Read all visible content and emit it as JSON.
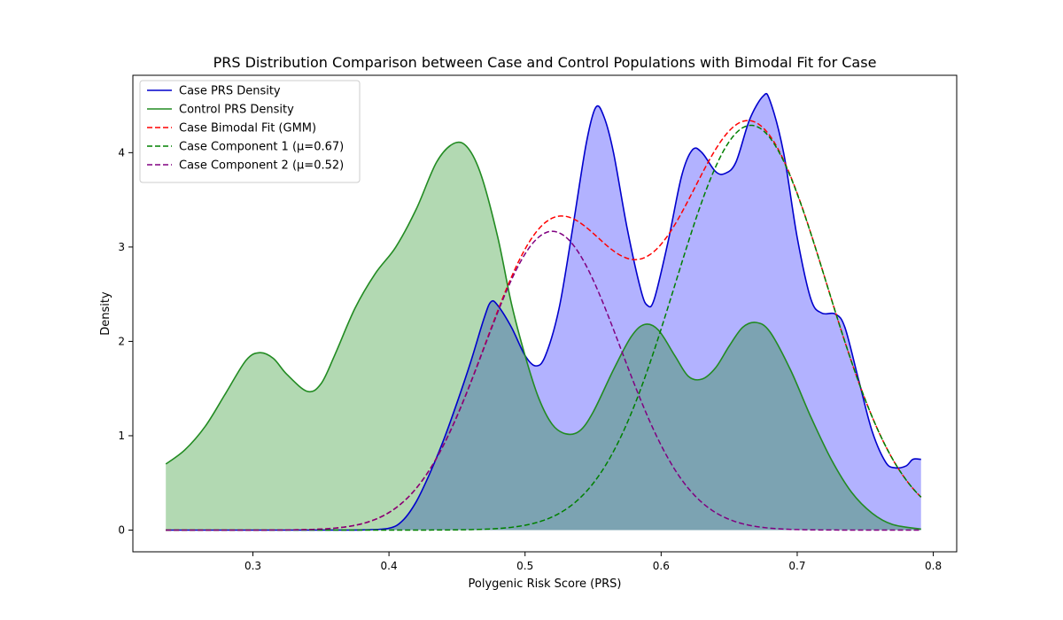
{
  "chart_data": {
    "type": "line",
    "title": "PRS Distribution Comparison between Case and Control Populations with Bimodal Fit for Case",
    "xlabel": "Polygenic Risk Score (PRS)",
    "ylabel": "Density",
    "xlim": [
      0.2118,
      0.8172
    ],
    "ylim": [
      -0.23,
      4.82
    ],
    "x_ticks": [
      0.3,
      0.4,
      0.5,
      0.6,
      0.7,
      0.8
    ],
    "x_tick_labels": [
      "0.3",
      "0.4",
      "0.5",
      "0.6",
      "0.7",
      "0.8"
    ],
    "y_ticks": [
      0,
      1,
      2,
      3,
      4
    ],
    "y_tick_labels": [
      "0",
      "1",
      "2",
      "3",
      "4"
    ],
    "grid": false,
    "legend_position": "top-left",
    "series": [
      {
        "name": "Case PRS Density",
        "color": "#0000cc",
        "fill": "#0000ff",
        "fill_opacity": 0.3,
        "dash": "solid",
        "points": [
          [
            0.236,
            0.0
          ],
          [
            0.35,
            0.0
          ],
          [
            0.38,
            0.002
          ],
          [
            0.4,
            0.02
          ],
          [
            0.41,
            0.1
          ],
          [
            0.42,
            0.3
          ],
          [
            0.43,
            0.6
          ],
          [
            0.44,
            0.95
          ],
          [
            0.45,
            1.35
          ],
          [
            0.46,
            1.78
          ],
          [
            0.47,
            2.25
          ],
          [
            0.475,
            2.42
          ],
          [
            0.48,
            2.38
          ],
          [
            0.49,
            2.15
          ],
          [
            0.5,
            1.85
          ],
          [
            0.508,
            1.74
          ],
          [
            0.515,
            1.85
          ],
          [
            0.525,
            2.35
          ],
          [
            0.535,
            3.2
          ],
          [
            0.545,
            4.1
          ],
          [
            0.552,
            4.48
          ],
          [
            0.558,
            4.38
          ],
          [
            0.565,
            4.0
          ],
          [
            0.575,
            3.2
          ],
          [
            0.585,
            2.55
          ],
          [
            0.59,
            2.38
          ],
          [
            0.595,
            2.45
          ],
          [
            0.605,
            3.05
          ],
          [
            0.615,
            3.75
          ],
          [
            0.623,
            4.03
          ],
          [
            0.63,
            4.0
          ],
          [
            0.64,
            3.8
          ],
          [
            0.647,
            3.78
          ],
          [
            0.655,
            3.9
          ],
          [
            0.665,
            4.35
          ],
          [
            0.675,
            4.6
          ],
          [
            0.68,
            4.55
          ],
          [
            0.69,
            4.0
          ],
          [
            0.7,
            3.1
          ],
          [
            0.71,
            2.45
          ],
          [
            0.718,
            2.3
          ],
          [
            0.728,
            2.29
          ],
          [
            0.735,
            2.15
          ],
          [
            0.745,
            1.6
          ],
          [
            0.755,
            1.05
          ],
          [
            0.765,
            0.72
          ],
          [
            0.772,
            0.66
          ],
          [
            0.78,
            0.68
          ],
          [
            0.785,
            0.75
          ],
          [
            0.791,
            0.75
          ]
        ]
      },
      {
        "name": "Control PRS Density",
        "color": "#228b22",
        "fill": "#008000",
        "fill_opacity": 0.3,
        "dash": "solid",
        "points": [
          [
            0.236,
            0.7
          ],
          [
            0.25,
            0.85
          ],
          [
            0.265,
            1.1
          ],
          [
            0.28,
            1.45
          ],
          [
            0.295,
            1.8
          ],
          [
            0.305,
            1.88
          ],
          [
            0.315,
            1.82
          ],
          [
            0.325,
            1.65
          ],
          [
            0.34,
            1.47
          ],
          [
            0.35,
            1.55
          ],
          [
            0.36,
            1.85
          ],
          [
            0.375,
            2.35
          ],
          [
            0.39,
            2.72
          ],
          [
            0.405,
            3.0
          ],
          [
            0.42,
            3.4
          ],
          [
            0.435,
            3.9
          ],
          [
            0.448,
            4.1
          ],
          [
            0.458,
            4.05
          ],
          [
            0.468,
            3.75
          ],
          [
            0.48,
            3.1
          ],
          [
            0.49,
            2.4
          ],
          [
            0.5,
            1.85
          ],
          [
            0.51,
            1.4
          ],
          [
            0.52,
            1.12
          ],
          [
            0.53,
            1.02
          ],
          [
            0.54,
            1.05
          ],
          [
            0.55,
            1.25
          ],
          [
            0.565,
            1.7
          ],
          [
            0.578,
            2.05
          ],
          [
            0.588,
            2.18
          ],
          [
            0.598,
            2.12
          ],
          [
            0.61,
            1.85
          ],
          [
            0.62,
            1.63
          ],
          [
            0.63,
            1.6
          ],
          [
            0.64,
            1.72
          ],
          [
            0.65,
            1.95
          ],
          [
            0.66,
            2.15
          ],
          [
            0.67,
            2.2
          ],
          [
            0.68,
            2.1
          ],
          [
            0.695,
            1.7
          ],
          [
            0.71,
            1.2
          ],
          [
            0.725,
            0.75
          ],
          [
            0.74,
            0.4
          ],
          [
            0.755,
            0.18
          ],
          [
            0.77,
            0.06
          ],
          [
            0.791,
            0.01
          ]
        ]
      },
      {
        "name": "Case Bimodal Fit (GMM)",
        "color": "#ff0000",
        "dash": "dashed",
        "mixture": [
          {
            "weight": 0.6,
            "mu": 0.666,
            "sigma": 0.0558
          },
          {
            "weight": 0.4,
            "mu": 0.52,
            "sigma": 0.0504
          }
        ]
      },
      {
        "name": "Case Component 1 (μ=0.67)",
        "color": "#008000",
        "dash": "dashed",
        "mixture": [
          {
            "weight": 0.6,
            "mu": 0.666,
            "sigma": 0.0558
          }
        ]
      },
      {
        "name": "Case Component 2 (μ=0.52)",
        "color": "#800080",
        "dash": "dashed",
        "mixture": [
          {
            "weight": 0.4,
            "mu": 0.52,
            "sigma": 0.0504
          }
        ]
      }
    ]
  }
}
